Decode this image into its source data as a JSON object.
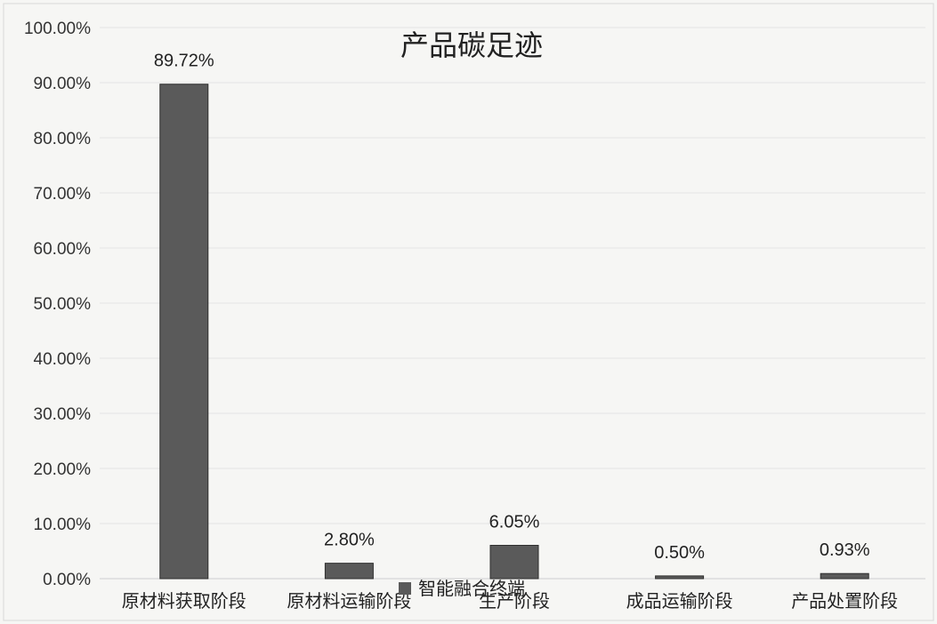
{
  "chart_data": {
    "type": "bar",
    "title": "产品碳足迹",
    "categories": [
      "原材料获取阶段",
      "原材料运输阶段",
      "生产阶段",
      "成品运输阶段",
      "产品处置阶段"
    ],
    "series": [
      {
        "name": "智能融合终端",
        "values": [
          89.72,
          2.8,
          6.05,
          0.5,
          0.93
        ]
      }
    ],
    "data_labels": [
      "89.72%",
      "2.80%",
      "6.05%",
      "0.50%",
      "0.93%"
    ],
    "y_ticks": [
      "0.00%",
      "10.00%",
      "20.00%",
      "30.00%",
      "40.00%",
      "50.00%",
      "60.00%",
      "70.00%",
      "80.00%",
      "90.00%",
      "100.00%"
    ],
    "ylim": [
      0,
      100
    ],
    "grid": true,
    "legend_position": "bottom",
    "colors": {
      "bar": "#5a5a5a",
      "bar_stroke": "#2e2e2e",
      "grid": "#e4e4e4",
      "background": "#f6f6f4",
      "axis": "#cfcfcf"
    }
  }
}
